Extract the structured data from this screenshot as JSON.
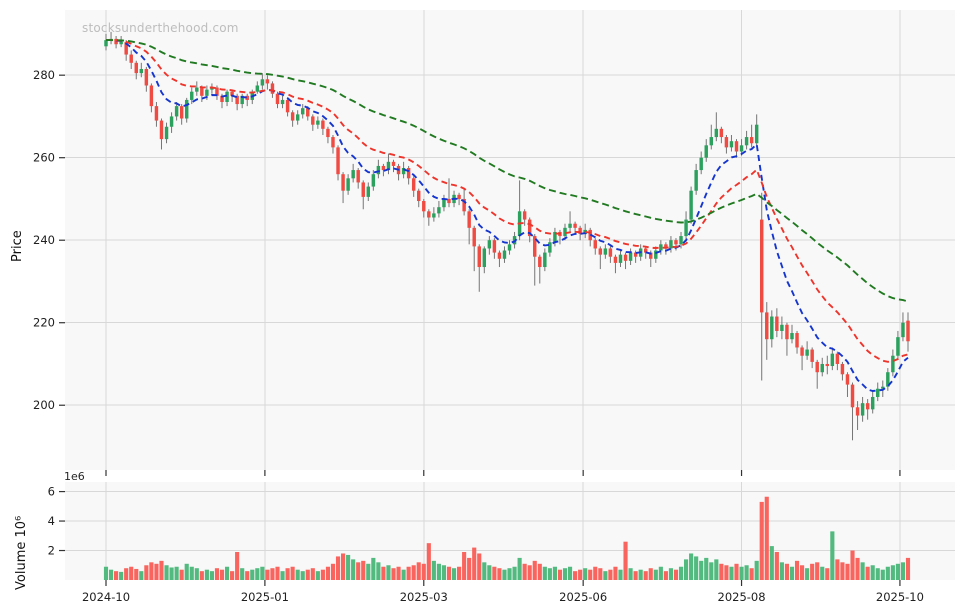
{
  "watermark": "stocksunderthehood.com",
  "chart_data": {
    "type": "candlestick",
    "title": "",
    "xlabel": "",
    "x_ticks": [
      {
        "label": "2024-10",
        "index": 0
      },
      {
        "label": "2025-01",
        "index": 31.5
      },
      {
        "label": "2025-03",
        "index": 63
      },
      {
        "label": "2025-06",
        "index": 94.6
      },
      {
        "label": "2025-08",
        "index": 126
      },
      {
        "label": "2025-10",
        "index": 157.4
      }
    ],
    "price_panel": {
      "ylabel": "Price",
      "ticks": [
        200,
        220,
        240,
        260,
        280
      ],
      "ylim": [
        184.3,
        295.8
      ],
      "grid": true
    },
    "volume_panel": {
      "ylabel": "Volume 10⁶",
      "offset_text": "1e6",
      "ticks_millions": [
        2,
        4,
        6
      ],
      "ylim_millions": [
        0,
        6.65
      ],
      "grid": true
    },
    "moving_averages": [
      {
        "name": "fast-ema",
        "span": 9,
        "color": "#1535cf",
        "dash": [
          6,
          4
        ]
      },
      {
        "name": "medium-ema",
        "span": 21,
        "color": "#ee352c",
        "dash": [
          6,
          4
        ]
      },
      {
        "name": "slow-ema",
        "span": 60,
        "color": "#217a21",
        "dash": [
          7,
          4
        ]
      }
    ],
    "colors": {
      "up": "#2ba15d",
      "down": "#ef4b42",
      "wick": "#757575",
      "volume_up": "#52ba7f",
      "volume_down": "#f9655e",
      "grid": "#d8d8d8",
      "panel_bg": "#f8f8f8",
      "tick_text": "#202020",
      "tick_mark": "#333333"
    },
    "candles": {
      "columns": [
        "open",
        "high",
        "low",
        "close",
        "volume_millions"
      ],
      "rows": [
        [
          287.0,
          290.0,
          286.0,
          288.5,
          0.9
        ],
        [
          288.5,
          290.5,
          287.5,
          288.8,
          0.7
        ],
        [
          288.8,
          289.5,
          286.5,
          287.5,
          0.6
        ],
        [
          287.5,
          289.5,
          286.8,
          288.2,
          0.55
        ],
        [
          288.0,
          288.5,
          283.5,
          285.0,
          0.8
        ],
        [
          285.0,
          286.0,
          281.5,
          283.0,
          0.9
        ],
        [
          283.0,
          283.5,
          279.0,
          280.5,
          0.75
        ],
        [
          280.5,
          283.0,
          279.5,
          281.5,
          0.6
        ],
        [
          281.5,
          282.0,
          276.0,
          277.5,
          1.0
        ],
        [
          277.5,
          278.0,
          271.0,
          272.5,
          1.2
        ],
        [
          272.5,
          273.5,
          267.5,
          269.0,
          1.1
        ],
        [
          269.0,
          269.5,
          262.0,
          264.5,
          1.3
        ],
        [
          264.5,
          268.5,
          263.5,
          267.5,
          1.0
        ],
        [
          267.5,
          271.0,
          266.0,
          270.0,
          0.85
        ],
        [
          270.0,
          273.5,
          269.0,
          272.5,
          0.9
        ],
        [
          272.5,
          273.0,
          268.0,
          269.5,
          0.7
        ],
        [
          269.5,
          274.5,
          268.5,
          274.0,
          1.1
        ],
        [
          274.0,
          277.0,
          273.0,
          276.0,
          0.9
        ],
        [
          276.0,
          278.5,
          275.0,
          277.0,
          0.8
        ],
        [
          277.0,
          277.5,
          273.5,
          275.0,
          0.6
        ],
        [
          275.0,
          277.5,
          274.0,
          276.5,
          0.7
        ],
        [
          276.5,
          278.0,
          275.5,
          277.0,
          0.6
        ],
        [
          277.0,
          277.5,
          274.0,
          275.0,
          0.8
        ],
        [
          275.0,
          275.5,
          272.0,
          273.5,
          0.7
        ],
        [
          273.5,
          276.5,
          272.5,
          276.0,
          0.9
        ],
        [
          276.0,
          276.5,
          273.5,
          275.0,
          0.6
        ],
        [
          275.0,
          275.5,
          271.5,
          273.0,
          1.9
        ],
        [
          273.0,
          275.5,
          272.0,
          275.0,
          0.8
        ],
        [
          275.0,
          275.5,
          272.5,
          274.0,
          0.6
        ],
        [
          274.0,
          276.5,
          273.0,
          276.0,
          0.7
        ],
        [
          276.0,
          278.5,
          275.5,
          277.5,
          0.8
        ],
        [
          277.5,
          280.5,
          276.5,
          279.0,
          0.9
        ],
        [
          279.0,
          280.0,
          276.5,
          278.0,
          0.7
        ],
        [
          278.0,
          278.5,
          274.5,
          275.5,
          0.8
        ],
        [
          275.5,
          276.0,
          272.0,
          273.0,
          0.9
        ],
        [
          273.0,
          275.0,
          272.0,
          274.0,
          0.6
        ],
        [
          274.0,
          274.5,
          270.0,
          271.0,
          0.8
        ],
        [
          271.0,
          271.5,
          267.5,
          269.0,
          0.9
        ],
        [
          269.0,
          271.5,
          268.0,
          270.5,
          0.7
        ],
        [
          270.5,
          273.0,
          269.5,
          272.0,
          0.6
        ],
        [
          272.0,
          272.5,
          269.0,
          270.0,
          0.7
        ],
        [
          270.0,
          270.5,
          266.5,
          268.0,
          0.8
        ],
        [
          268.0,
          270.0,
          267.0,
          269.0,
          0.6
        ],
        [
          269.0,
          269.5,
          265.5,
          267.0,
          0.7
        ],
        [
          267.0,
          267.5,
          263.5,
          265.0,
          0.9
        ],
        [
          265.0,
          265.5,
          261.0,
          262.5,
          1.1
        ],
        [
          262.5,
          263.0,
          254.5,
          256.0,
          1.6
        ],
        [
          256.0,
          256.5,
          249.0,
          252.0,
          1.8
        ],
        [
          252.0,
          256.0,
          251.0,
          255.0,
          1.7
        ],
        [
          255.0,
          258.5,
          254.0,
          257.0,
          1.4
        ],
        [
          257.0,
          257.5,
          252.5,
          254.0,
          1.2
        ],
        [
          254.0,
          254.5,
          247.5,
          250.5,
          1.3
        ],
        [
          250.5,
          254.0,
          249.5,
          253.0,
          1.1
        ],
        [
          253.0,
          257.0,
          252.0,
          256.0,
          1.5
        ],
        [
          256.0,
          259.5,
          255.0,
          258.0,
          1.2
        ],
        [
          258.0,
          258.5,
          255.5,
          257.0,
          0.9
        ],
        [
          257.0,
          261.0,
          256.0,
          259.0,
          1.0
        ],
        [
          259.0,
          259.5,
          256.5,
          258.0,
          0.8
        ],
        [
          258.0,
          258.5,
          254.5,
          256.0,
          0.9
        ],
        [
          256.0,
          259.0,
          255.0,
          257.5,
          0.7
        ],
        [
          257.5,
          258.0,
          253.5,
          255.0,
          0.9
        ],
        [
          255.0,
          255.5,
          250.5,
          252.0,
          1.0
        ],
        [
          252.0,
          252.5,
          248.0,
          249.5,
          1.2
        ],
        [
          249.5,
          250.0,
          245.5,
          247.0,
          1.1
        ],
        [
          247.0,
          247.5,
          243.5,
          245.5,
          2.5
        ],
        [
          245.5,
          248.0,
          244.5,
          246.5,
          1.3
        ],
        [
          246.5,
          249.5,
          245.5,
          248.0,
          1.1
        ],
        [
          248.0,
          251.0,
          247.0,
          250.0,
          1.0
        ],
        [
          250.0,
          255.0,
          248.0,
          249.0,
          0.9
        ],
        [
          249.0,
          252.0,
          248.0,
          251.0,
          0.8
        ],
        [
          251.0,
          251.5,
          248.5,
          250.0,
          0.9
        ],
        [
          250.0,
          252.5,
          246.0,
          247.0,
          1.9
        ],
        [
          247.0,
          247.5,
          239.0,
          243.0,
          1.5
        ],
        [
          243.0,
          243.5,
          232.5,
          238.5,
          2.2
        ],
        [
          238.5,
          239.0,
          227.5,
          233.5,
          1.8
        ],
        [
          233.5,
          238.5,
          232.0,
          238.0,
          1.2
        ],
        [
          238.0,
          241.0,
          236.5,
          240.0,
          1.0
        ],
        [
          240.0,
          240.5,
          235.5,
          237.0,
          0.9
        ],
        [
          237.0,
          237.5,
          233.5,
          235.5,
          0.8
        ],
        [
          235.5,
          238.5,
          234.5,
          237.5,
          0.7
        ],
        [
          237.5,
          240.0,
          236.5,
          239.0,
          0.8
        ],
        [
          239.0,
          242.0,
          238.0,
          241.0,
          0.9
        ],
        [
          241.0,
          254.5,
          240.0,
          247.0,
          1.5
        ],
        [
          247.0,
          247.5,
          243.5,
          245.0,
          1.1
        ],
        [
          245.0,
          245.5,
          239.5,
          241.0,
          1.0
        ],
        [
          241.0,
          241.5,
          229.0,
          236.0,
          1.3
        ],
        [
          236.0,
          236.5,
          229.5,
          233.5,
          1.1
        ],
        [
          233.5,
          238.0,
          232.5,
          237.0,
          0.9
        ],
        [
          237.0,
          240.5,
          236.0,
          239.5,
          0.8
        ],
        [
          239.5,
          243.0,
          238.5,
          242.0,
          0.9
        ],
        [
          242.0,
          242.5,
          239.0,
          241.0,
          0.7
        ],
        [
          241.0,
          244.0,
          240.0,
          243.0,
          0.8
        ],
        [
          243.0,
          247.0,
          242.0,
          244.0,
          0.9
        ],
        [
          244.0,
          244.5,
          241.5,
          243.0,
          0.6
        ],
        [
          243.0,
          243.5,
          240.0,
          241.5,
          0.7
        ],
        [
          241.5,
          244.0,
          240.5,
          242.5,
          0.8
        ],
        [
          242.5,
          243.0,
          238.5,
          240.0,
          0.7
        ],
        [
          240.0,
          240.5,
          236.5,
          238.0,
          0.9
        ],
        [
          238.0,
          238.5,
          233.0,
          236.5,
          0.8
        ],
        [
          236.5,
          239.0,
          235.5,
          238.0,
          0.6
        ],
        [
          238.0,
          238.5,
          234.5,
          236.0,
          0.7
        ],
        [
          236.0,
          236.5,
          232.0,
          234.5,
          0.9
        ],
        [
          234.5,
          237.5,
          233.5,
          236.5,
          0.7
        ],
        [
          236.5,
          237.0,
          233.0,
          235.0,
          2.6
        ],
        [
          235.0,
          238.0,
          234.0,
          237.0,
          0.8
        ],
        [
          237.0,
          237.5,
          234.5,
          236.0,
          0.6
        ],
        [
          236.0,
          239.0,
          235.0,
          238.0,
          0.7
        ],
        [
          238.0,
          238.5,
          235.5,
          237.0,
          0.6
        ],
        [
          237.0,
          237.5,
          233.5,
          235.5,
          0.8
        ],
        [
          235.5,
          238.5,
          234.5,
          237.5,
          0.7
        ],
        [
          237.5,
          240.0,
          236.5,
          239.0,
          0.9
        ],
        [
          239.0,
          239.5,
          236.5,
          238.0,
          0.6
        ],
        [
          238.0,
          241.0,
          237.0,
          240.0,
          0.8
        ],
        [
          240.0,
          240.5,
          237.5,
          239.0,
          0.7
        ],
        [
          239.0,
          242.0,
          238.0,
          241.0,
          0.9
        ],
        [
          241.0,
          247.0,
          240.0,
          245.0,
          1.4
        ],
        [
          245.0,
          253.0,
          244.0,
          252.0,
          1.8
        ],
        [
          252.0,
          258.5,
          251.0,
          257.0,
          1.6
        ],
        [
          257.0,
          261.5,
          256.0,
          260.0,
          1.3
        ],
        [
          260.0,
          264.5,
          259.0,
          263.0,
          1.5
        ],
        [
          263.0,
          268.0,
          262.0,
          265.0,
          1.2
        ],
        [
          265.0,
          271.0,
          264.0,
          267.0,
          1.4
        ],
        [
          267.0,
          267.5,
          263.5,
          265.0,
          1.1
        ],
        [
          265.0,
          265.5,
          261.0,
          262.5,
          1.0
        ],
        [
          262.5,
          265.5,
          261.5,
          264.0,
          0.9
        ],
        [
          264.0,
          264.5,
          260.0,
          261.5,
          1.1
        ],
        [
          261.5,
          264.5,
          260.5,
          263.0,
          0.9
        ],
        [
          263.0,
          266.5,
          262.0,
          265.0,
          1.0
        ],
        [
          265.0,
          268.0,
          262.5,
          263.5,
          0.8
        ],
        [
          263.5,
          270.5,
          263.0,
          268.0,
          1.3
        ],
        [
          245.0,
          251.5,
          206.0,
          222.5,
          5.3
        ],
        [
          222.5,
          225.0,
          211.0,
          216.0,
          5.65
        ],
        [
          216.0,
          223.0,
          214.0,
          221.5,
          2.3
        ],
        [
          221.5,
          223.5,
          216.5,
          218.0,
          1.9
        ],
        [
          218.0,
          221.5,
          216.0,
          219.5,
          1.2
        ],
        [
          219.5,
          220.0,
          212.0,
          216.0,
          1.1
        ],
        [
          216.0,
          219.5,
          215.0,
          217.5,
          0.9
        ],
        [
          217.5,
          218.0,
          212.5,
          214.0,
          1.3
        ],
        [
          214.0,
          214.5,
          208.5,
          212.0,
          1.0
        ],
        [
          212.0,
          215.5,
          211.0,
          213.5,
          0.8
        ],
        [
          213.5,
          214.0,
          209.0,
          210.5,
          1.1
        ],
        [
          210.5,
          211.0,
          204.0,
          208.0,
          1.2
        ],
        [
          208.0,
          211.5,
          207.0,
          210.0,
          0.9
        ],
        [
          210.0,
          212.0,
          207.5,
          209.5,
          0.8
        ],
        [
          209.5,
          214.0,
          208.5,
          212.5,
          3.3
        ],
        [
          212.5,
          213.0,
          208.5,
          210.0,
          1.4
        ],
        [
          210.0,
          210.5,
          206.0,
          207.5,
          1.2
        ],
        [
          207.5,
          208.0,
          202.0,
          205.0,
          1.1
        ],
        [
          205.0,
          205.5,
          191.5,
          199.5,
          2.0
        ],
        [
          199.5,
          201.0,
          194.0,
          197.5,
          1.5
        ],
        [
          197.5,
          202.0,
          196.0,
          200.5,
          1.2
        ],
        [
          200.5,
          201.5,
          196.5,
          199.0,
          0.9
        ],
        [
          199.0,
          203.5,
          198.0,
          202.0,
          1.0
        ],
        [
          202.0,
          205.5,
          201.0,
          204.0,
          0.8
        ],
        [
          204.0,
          206.0,
          202.0,
          204.5,
          0.7
        ],
        [
          204.5,
          209.0,
          203.5,
          208.0,
          0.9
        ],
        [
          208.0,
          213.5,
          207.0,
          212.0,
          1.0
        ],
        [
          212.0,
          218.0,
          211.0,
          216.5,
          1.1
        ],
        [
          216.5,
          222.5,
          215.5,
          220.0,
          1.2
        ],
        [
          220.5,
          222.5,
          213.0,
          215.5,
          1.5
        ]
      ]
    }
  }
}
